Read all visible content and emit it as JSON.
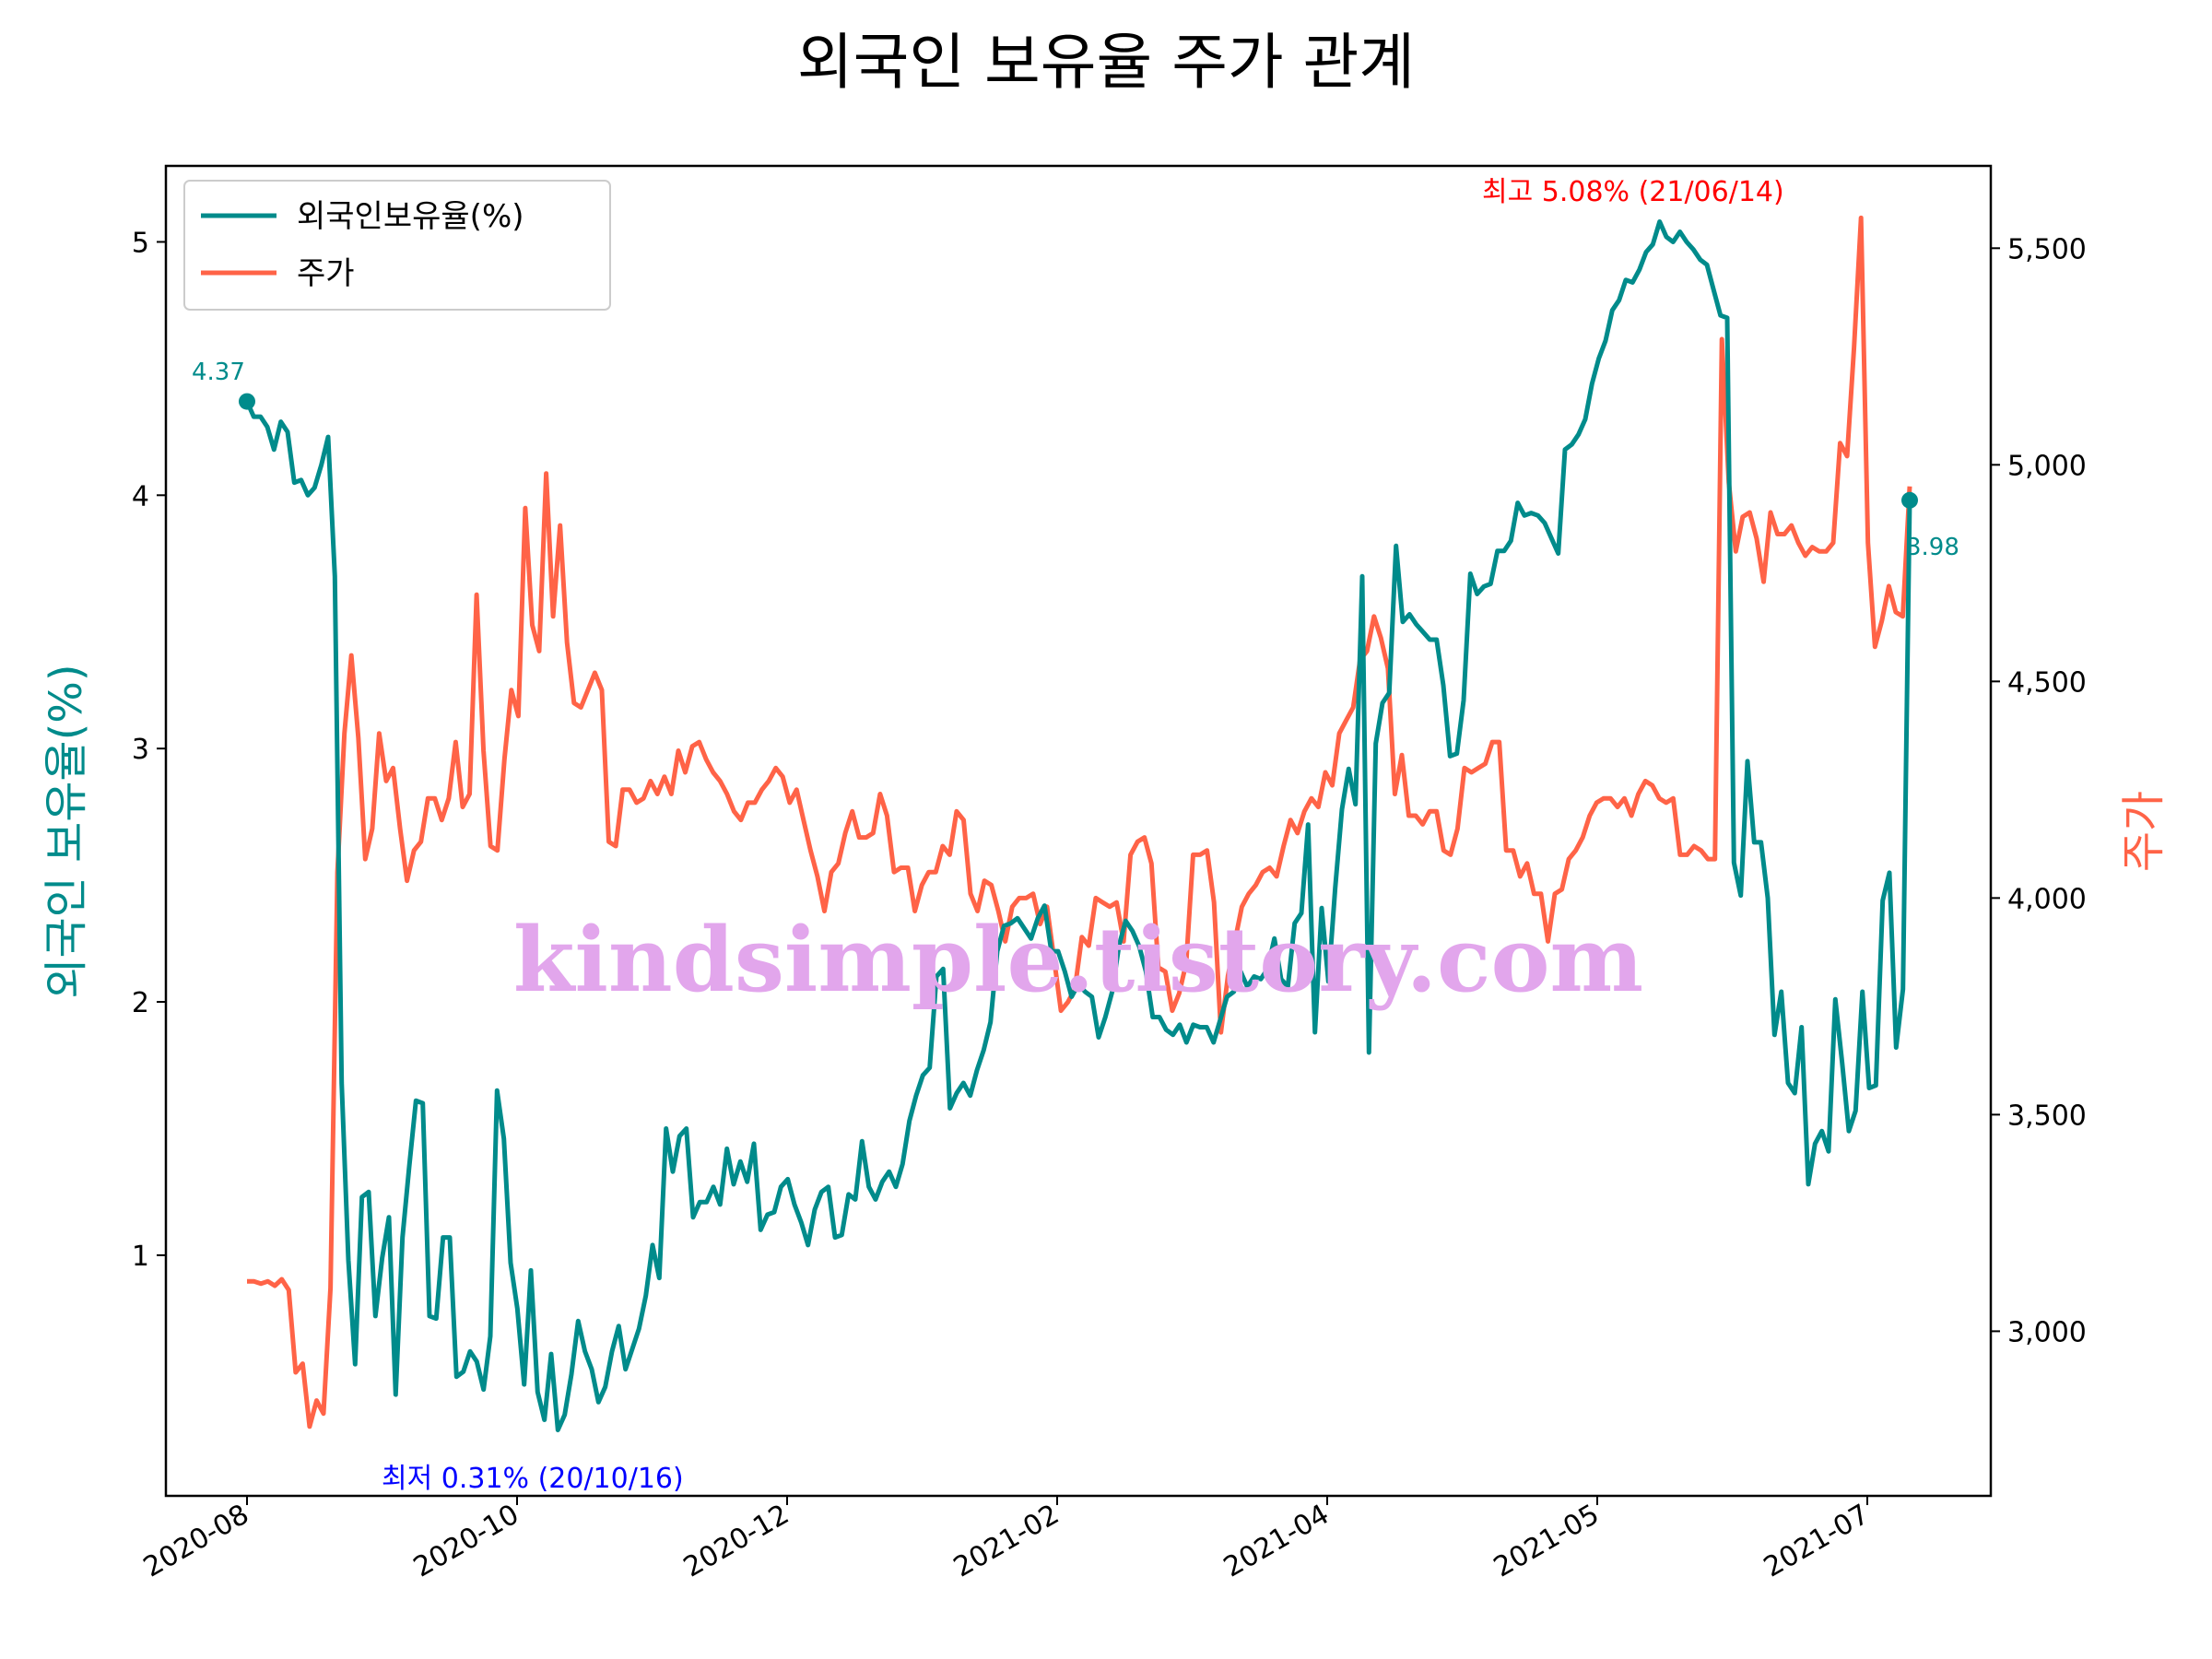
{
  "chart_data": {
    "type": "line",
    "title": "외국인 보유율 주가 관계",
    "ylabel": "외국인 보유율(%)",
    "y2label": "주가",
    "ylim": [
      0.05,
      5.3
    ],
    "y2lim": [
      2620,
      5690
    ],
    "yticks": [
      "1",
      "2",
      "3",
      "4",
      "5"
    ],
    "y2ticks": [
      "3,000",
      "3,500",
      "4,000",
      "4,500",
      "5,000",
      "5,500"
    ],
    "xticks": [
      "2020-08",
      "2020-10",
      "2020-12",
      "2021-02",
      "2021-04",
      "2021-05",
      "2021-07"
    ],
    "legend": {
      "position": "upper-left"
    },
    "colors": {
      "holding": "#008b8b",
      "price": "#ff6347",
      "max": "#ff0000",
      "min": "#0000ff",
      "watermark": "#e2a6ec"
    },
    "series": [
      {
        "name": "외국인보유율(%)",
        "axis": "left",
        "values": [
          4.37,
          4.31,
          4.31,
          4.27,
          4.18,
          4.29,
          4.25,
          4.05,
          4.06,
          4.0,
          4.03,
          4.12,
          4.23,
          3.68,
          1.68,
          0.98,
          0.57,
          1.23,
          1.25,
          0.76,
          0.99,
          1.15,
          0.45,
          1.07,
          1.35,
          1.61,
          1.6,
          0.76,
          0.75,
          1.07,
          1.07,
          0.52,
          0.54,
          0.62,
          0.58,
          0.47,
          0.68,
          1.65,
          1.46,
          0.97,
          0.79,
          0.49,
          0.94,
          0.46,
          0.35,
          0.61,
          0.31,
          0.37,
          0.53,
          0.74,
          0.62,
          0.55,
          0.42,
          0.48,
          0.62,
          0.72,
          0.55,
          0.63,
          0.71,
          0.84,
          1.04,
          0.91,
          1.5,
          1.33,
          1.47,
          1.5,
          1.15,
          1.21,
          1.21,
          1.27,
          1.2,
          1.42,
          1.28,
          1.37,
          1.29,
          1.44,
          1.1,
          1.16,
          1.17,
          1.27,
          1.3,
          1.2,
          1.13,
          1.04,
          1.18,
          1.25,
          1.27,
          1.07,
          1.08,
          1.24,
          1.22,
          1.45,
          1.27,
          1.22,
          1.29,
          1.33,
          1.27,
          1.36,
          1.53,
          1.63,
          1.71,
          1.74,
          2.1,
          2.13,
          1.58,
          1.64,
          1.68,
          1.63,
          1.73,
          1.81,
          1.92,
          2.2,
          2.3,
          2.31,
          2.33,
          2.29,
          2.25,
          2.33,
          2.38,
          2.2,
          2.2,
          2.12,
          2.02,
          2.07,
          2.04,
          2.02,
          1.86,
          1.94,
          2.04,
          2.22,
          2.32,
          2.28,
          2.22,
          2.12,
          1.94,
          1.94,
          1.89,
          1.87,
          1.91,
          1.84,
          1.91,
          1.9,
          1.9,
          1.84,
          1.93,
          2.02,
          2.04,
          2.12,
          2.06,
          2.1,
          2.09,
          2.13,
          2.25,
          2.09,
          2.06,
          2.31,
          2.35,
          2.7,
          1.88,
          2.37,
          2.08,
          2.45,
          2.76,
          2.92,
          2.78,
          3.68,
          1.8,
          3.02,
          3.18,
          3.22,
          3.8,
          3.5,
          3.53,
          3.49,
          3.46,
          3.43,
          3.43,
          3.25,
          2.97,
          2.98,
          3.19,
          3.69,
          3.61,
          3.64,
          3.65,
          3.78,
          3.78,
          3.82,
          3.97,
          3.92,
          3.93,
          3.92,
          3.89,
          3.83,
          3.77,
          4.18,
          4.2,
          4.24,
          4.3,
          4.44,
          4.54,
          4.61,
          4.73,
          4.77,
          4.85,
          4.84,
          4.89,
          4.96,
          4.99,
          5.08,
          5.02,
          5.0,
          5.04,
          5.0,
          4.97,
          4.93,
          4.91,
          4.81,
          4.71,
          4.7,
          2.55,
          2.42,
          2.95,
          2.63,
          2.63,
          2.41,
          1.87,
          2.04,
          1.68,
          1.64,
          1.9,
          1.28,
          1.44,
          1.49,
          1.41,
          2.01,
          1.76,
          1.49,
          1.57,
          2.04,
          1.66,
          1.67,
          2.4,
          2.51,
          1.82,
          2.05,
          3.98
        ]
      },
      {
        "name": "주가",
        "axis": "right",
        "values": [
          3115,
          3115,
          3110,
          3115,
          3105,
          3120,
          3095,
          2905,
          2925,
          2780,
          2840,
          2810,
          3100,
          4060,
          4380,
          4560,
          4370,
          4090,
          4160,
          4380,
          4270,
          4300,
          4160,
          4040,
          4110,
          4130,
          4230,
          4230,
          4180,
          4230,
          4360,
          4210,
          4240,
          4700,
          4340,
          4120,
          4110,
          4320,
          4480,
          4420,
          4900,
          4630,
          4570,
          4980,
          4650,
          4860,
          4590,
          4450,
          4440,
          4480,
          4520,
          4480,
          4130,
          4120,
          4250,
          4250,
          4220,
          4230,
          4270,
          4240,
          4280,
          4240,
          4340,
          4290,
          4350,
          4360,
          4320,
          4290,
          4270,
          4240,
          4200,
          4180,
          4220,
          4220,
          4250,
          4270,
          4300,
          4280,
          4220,
          4250,
          4180,
          4110,
          4050,
          3970,
          4060,
          4080,
          4150,
          4200,
          4140,
          4140,
          4150,
          4240,
          4190,
          4060,
          4070,
          4070,
          3970,
          4030,
          4060,
          4060,
          4120,
          4100,
          4200,
          4180,
          4010,
          3970,
          4040,
          4030,
          3970,
          3900,
          3980,
          4000,
          4000,
          4010,
          3940,
          3980,
          3860,
          3740,
          3760,
          3790,
          3910,
          3890,
          4000,
          3990,
          3980,
          3990,
          3900,
          4100,
          4130,
          4140,
          4080,
          3840,
          3830,
          3740,
          3780,
          3850,
          4100,
          4100,
          4110,
          3990,
          3690,
          3820,
          3900,
          3980,
          4010,
          4030,
          4060,
          4070,
          4050,
          4120,
          4180,
          4150,
          4200,
          4230,
          4210,
          4290,
          4260,
          4380,
          4410,
          4440,
          4550,
          4570,
          4650,
          4600,
          4530,
          4240,
          4330,
          4190,
          4190,
          4170,
          4200,
          4200,
          4110,
          4100,
          4160,
          4300,
          4290,
          4300,
          4310,
          4360,
          4360,
          4110,
          4110,
          4050,
          4080,
          4010,
          4010,
          3900,
          4010,
          4020,
          4090,
          4110,
          4140,
          4190,
          4220,
          4230,
          4230,
          4210,
          4230,
          4190,
          4240,
          4270,
          4260,
          4230,
          4220,
          4230,
          4100,
          4100,
          4120,
          4110,
          4090,
          4090,
          5290,
          4960,
          4800,
          4880,
          4890,
          4830,
          4730,
          4890,
          4840,
          4840,
          4860,
          4820,
          4790,
          4810,
          4800,
          4800,
          4820,
          5050,
          5020,
          5270,
          5570,
          4820,
          4580,
          4640,
          4720,
          4660,
          4650,
          4950
        ]
      }
    ],
    "annotations": {
      "start_value": "4.37",
      "end_value": "3.98",
      "max_label": "최고 5.08% (21/06/14)",
      "min_label": "최저 0.31% (20/10/16)",
      "watermark": "kindsimple.tistory.com"
    }
  }
}
